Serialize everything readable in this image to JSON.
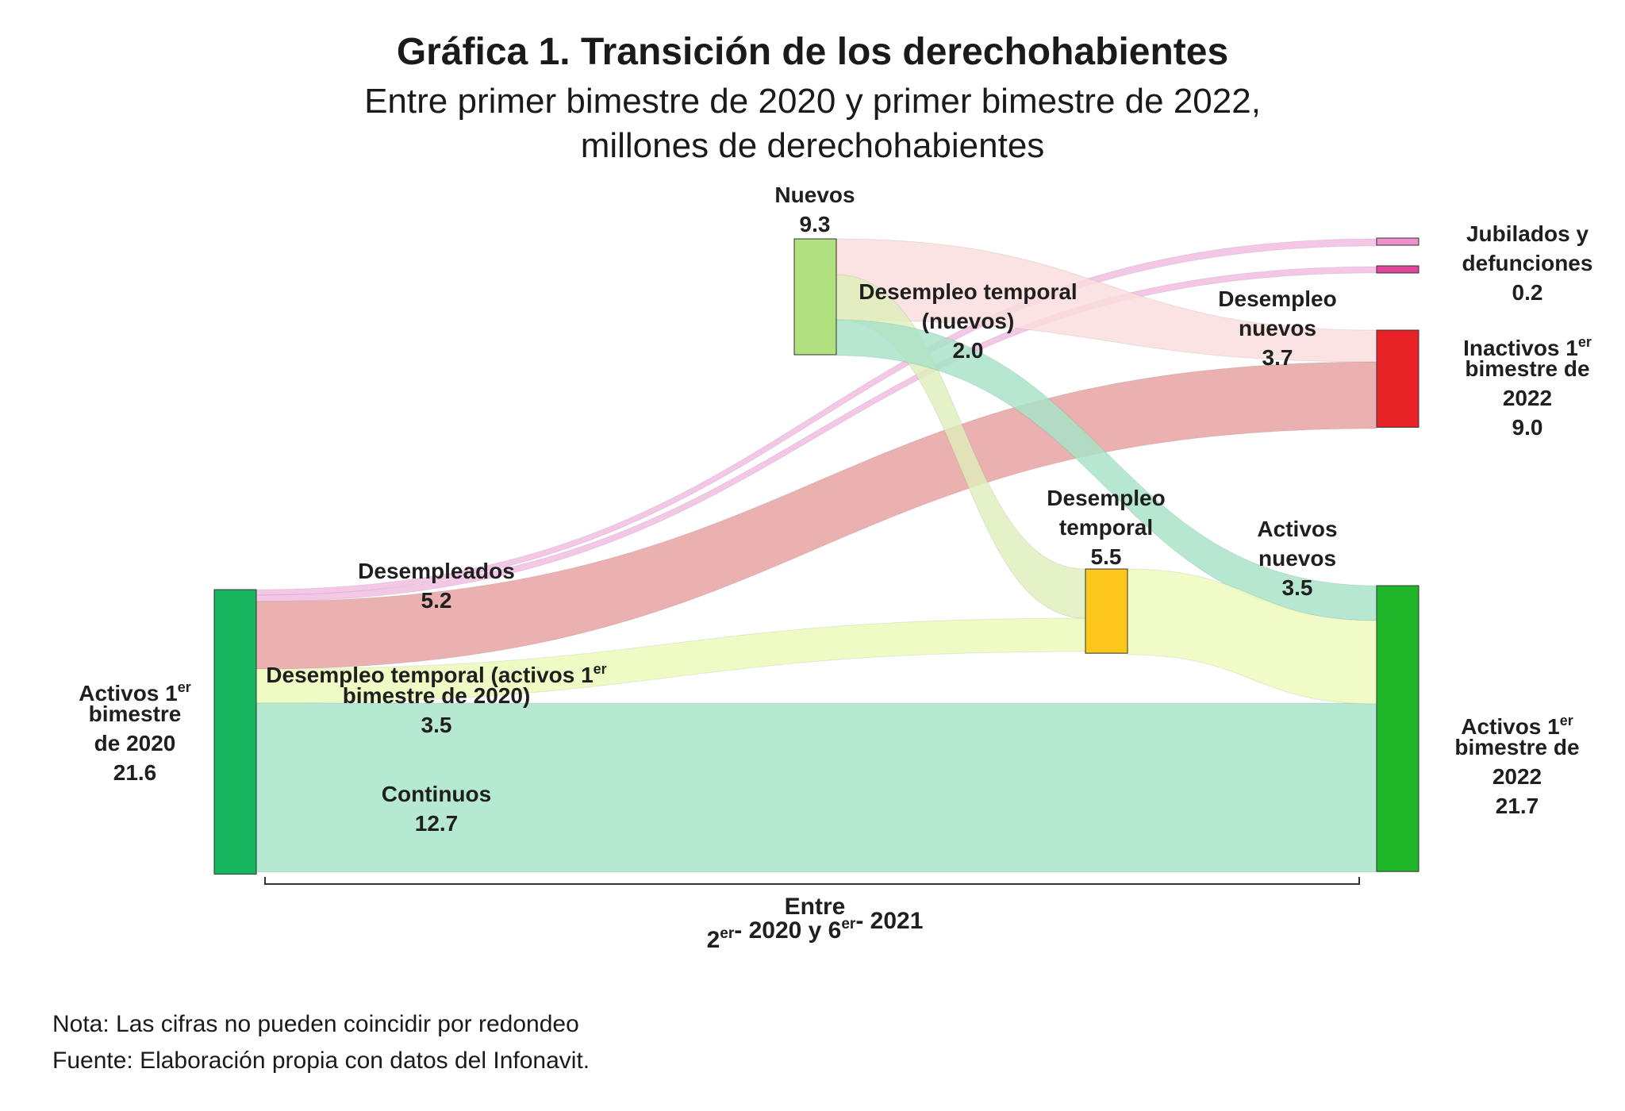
{
  "title": "Gráfica 1. Transición de los derechohabientes",
  "subtitle_line1": "Entre primer bimestre de 2020 y primer bimestre de 2022,",
  "subtitle_line2": "millones de derechohabientes",
  "chart_data": {
    "type": "sankey",
    "units": "millones de derechohabientes",
    "nodes": [
      {
        "id": "activos2020",
        "label": [
          "Activos 1",
          "er",
          "bimestre",
          "de 2020"
        ],
        "value": 21.6,
        "value_label": "21.6",
        "color": "#17b65e"
      },
      {
        "id": "nuevos",
        "label": [
          "Nuevos"
        ],
        "value": 9.3,
        "value_label": "9.3",
        "color": "#b1e07f"
      },
      {
        "id": "desempleo_temporal",
        "label": [
          "Desempleo",
          "temporal"
        ],
        "value": 5.5,
        "value_label": "5.5",
        "color": "#fbc71c"
      },
      {
        "id": "jubilados",
        "label": [
          "Jubilados y",
          "defunciones"
        ],
        "value": 0.2,
        "value_label": "0.2",
        "color": "#f190cf"
      },
      {
        "id": "inactivos2022",
        "label": [
          "Inactivos 1",
          "er",
          "bimestre de",
          "2022"
        ],
        "value": 9.0,
        "value_label": "9.0",
        "color": "#e82328"
      },
      {
        "id": "activos2022",
        "label": [
          "Activos 1",
          "er",
          "bimestre de",
          "2022"
        ],
        "value": 21.7,
        "value_label": "21.7",
        "color": "#1fb62a"
      }
    ],
    "links": [
      {
        "source": "activos2020",
        "target": "jubilados",
        "value": 0.1,
        "color": "#f2b4de",
        "label": ""
      },
      {
        "source": "activos2020",
        "target": "inactivos2022",
        "value": 5.2,
        "color": "#e8a8a7",
        "label": "Desempleados",
        "value_label": "5.2"
      },
      {
        "source": "activos2020",
        "target": "desempleo_temporal",
        "value": 3.5,
        "color": "#eefbc1",
        "label": "Desempleo temporal (activos 1er bimestre de 2020)",
        "value_label": "3.5"
      },
      {
        "source": "activos2020",
        "target": "activos2022",
        "value": 12.7,
        "color": "#b2e8cf",
        "label": "Continuos",
        "value_label": "12.7"
      },
      {
        "source": "nuevos",
        "target": "jubilados",
        "value": 0.1,
        "color": "#f2b4de",
        "label": ""
      },
      {
        "source": "nuevos",
        "target": "inactivos2022",
        "value": 3.7,
        "color": "#f9dedd",
        "label": "Desempleo nuevos",
        "value_label": "3.7"
      },
      {
        "source": "nuevos",
        "target": "desempleo_temporal",
        "value": 2.0,
        "color": "#dfefba",
        "label": "Desempleo temporal (nuevos)",
        "value_label": "2.0"
      },
      {
        "source": "nuevos",
        "target": "activos2022",
        "value": 3.5,
        "color": "#a9e3c8",
        "label": "Activos nuevos",
        "value_label": "3.5"
      },
      {
        "source": "desempleo_temporal",
        "target": "activos2022",
        "value": 5.5,
        "color": "#eefbc1",
        "label": ""
      }
    ],
    "x_axis_label": [
      "Entre",
      "2",
      "er",
      "- 2020 y 6",
      "er",
      "- 2021"
    ]
  },
  "notes": {
    "line1": "Nota: Las cifras no pueden coincidir por redondeo",
    "line2": "Fuente: Elaboración propia con datos del Infonavit."
  }
}
